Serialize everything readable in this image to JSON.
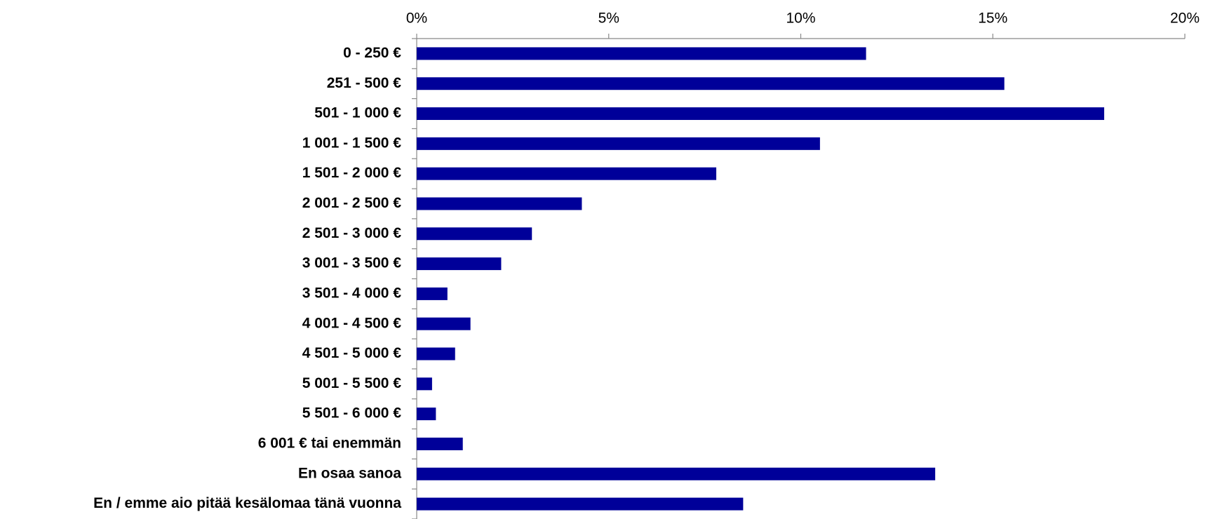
{
  "chart_data": {
    "type": "hbar",
    "categories": [
      "0 - 250 €",
      "251 - 500 €",
      "501 - 1 000 €",
      "1 001 - 1 500 €",
      "1 501 - 2 000 €",
      "2 001 - 2 500 €",
      "2 501 - 3 000 €",
      "3 001 - 3 500 €",
      "3 501 - 4 000 €",
      "4 001 - 4 500 €",
      "4 501 - 5 000 €",
      "5 001 - 5 500 €",
      "5 501 - 6 000 €",
      "6 001 € tai enemmän",
      "En osaa sanoa",
      "En / emme aio pitää kesälomaa tänä vuonna"
    ],
    "values": [
      11.7,
      15.3,
      17.9,
      10.5,
      7.8,
      4.3,
      3.0,
      2.2,
      0.8,
      1.4,
      1.0,
      0.4,
      0.5,
      1.2,
      13.5,
      8.5
    ],
    "color": "#000099",
    "xlim": [
      0,
      20
    ],
    "xticks": [
      {
        "value": 0,
        "label": "0%"
      },
      {
        "value": 5,
        "label": "5%"
      },
      {
        "value": 10,
        "label": "10%"
      },
      {
        "value": 15,
        "label": "15%"
      },
      {
        "value": 20,
        "label": "20%"
      }
    ]
  }
}
